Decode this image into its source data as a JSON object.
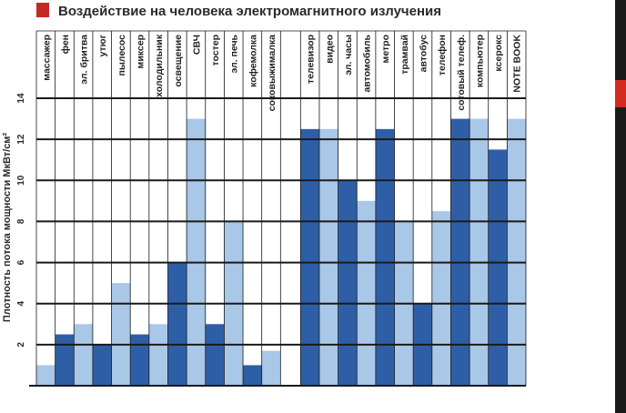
{
  "colors": {
    "dark_bar": "#2e5fa6",
    "light_bar": "#a9c7e7",
    "title_marker": "#c42a25",
    "grid": "#1a1a1a",
    "side_panel": "#1a1a1a",
    "side_accent": "#d42a22"
  },
  "chart_data": {
    "type": "bar",
    "title": "Воздействие на человека электромагнитного излучения",
    "ylabel": "Плотность потока мощности МкВт/см²",
    "xlabel": "",
    "ylim": [
      0,
      14
    ],
    "yticks": [
      2,
      4,
      6,
      8,
      10,
      12,
      14
    ],
    "grid": true,
    "categories": [
      "массажер",
      "фен",
      "эл. бритва",
      "утюг",
      "пылесос",
      "миксер",
      "холодильник",
      "освещение",
      "СВЧ",
      "тостер",
      "эл. печь",
      "кофемолка",
      "соковыжималка",
      "телевизор",
      "видео",
      "эл. часы",
      "автомобиль",
      "метро",
      "трамвай",
      "автобус",
      "телефон",
      "сотовый телеф.",
      "компьютер",
      "ксерокс",
      "NOTE BOOK"
    ],
    "values": [
      1,
      2.5,
      3,
      2,
      5,
      2.5,
      3,
      6,
      13,
      3,
      8,
      1,
      1.7,
      12.5,
      12.5,
      10,
      9,
      12.5,
      8,
      4,
      8.5,
      13,
      13,
      11.5,
      13
    ],
    "shades": [
      "light",
      "dark",
      "light",
      "dark",
      "light",
      "dark",
      "light",
      "dark",
      "light",
      "dark",
      "light",
      "dark",
      "light",
      "dark",
      "light",
      "dark",
      "light",
      "dark",
      "light",
      "dark",
      "light",
      "dark",
      "light",
      "dark",
      "light"
    ]
  }
}
